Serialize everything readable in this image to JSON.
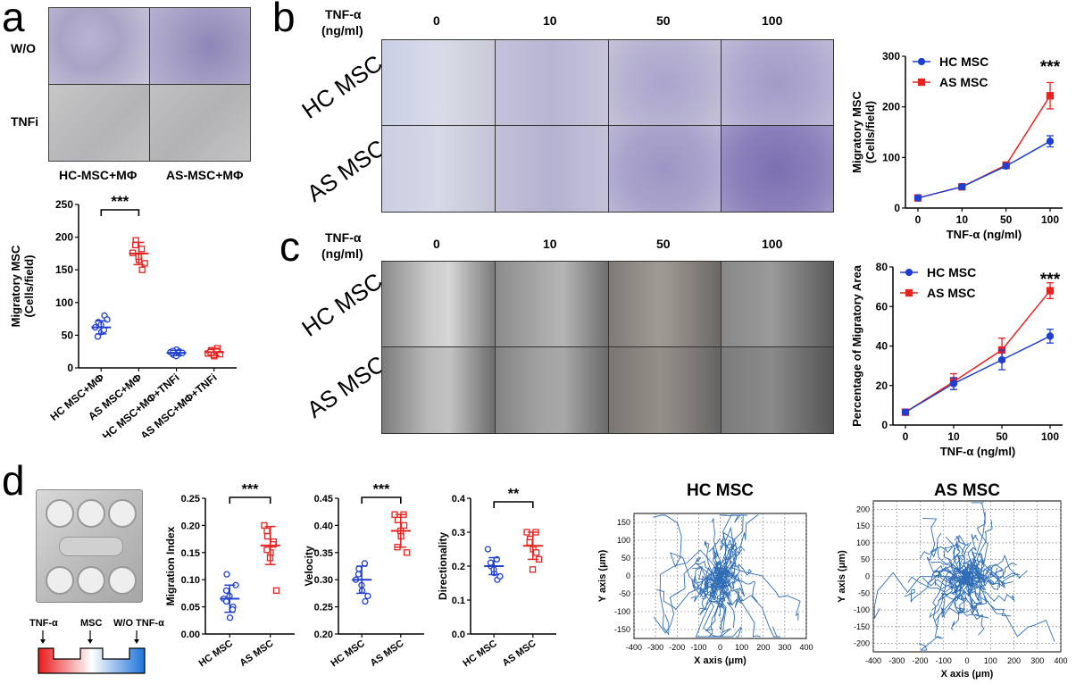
{
  "panels": {
    "a": {
      "label": "a",
      "rows": [
        "W/O",
        "TNFi"
      ],
      "cols": [
        "HC-MSC+MΦ",
        "AS-MSC+MΦ"
      ]
    },
    "b": {
      "label": "b",
      "tnf_label": "TNF-α",
      "tnf_unit": "(ng/ml)",
      "doses": [
        "0",
        "10",
        "50",
        "100"
      ],
      "rows": [
        "HC MSC",
        "AS MSC"
      ]
    },
    "c": {
      "label": "c",
      "tnf_label": "TNF-α",
      "tnf_unit": "(ng/ml)",
      "doses": [
        "0",
        "10",
        "50",
        "100"
      ],
      "rows": [
        "HC MSC",
        "AS MSC"
      ]
    },
    "d": {
      "label": "d",
      "schematic": {
        "left": "TNF-α",
        "mid": "MSC",
        "right": "W/O TNF-α"
      },
      "track_titles": [
        "HC MSC",
        "AS MSC"
      ]
    }
  },
  "chart_data": [
    {
      "id": "a-scatter",
      "type": "scatter",
      "categories": [
        "HC MSC+MΦ",
        "AS MSC+MΦ",
        "HC MSC+MΦ+TNFi",
        "AS MSC+MΦ+TNFi"
      ],
      "ylabel": "Migratory MSC\n(Cells/field)",
      "ylim": [
        0,
        250
      ],
      "yticks": [
        "0",
        "50",
        "100",
        "150",
        "200",
        "250"
      ],
      "significance": "***",
      "series": [
        {
          "points": [
            62,
            70,
            55,
            80,
            48,
            66,
            58,
            74
          ],
          "mean": 62,
          "sd": 10,
          "color": "#1f3fd1",
          "marker": "circle"
        },
        {
          "points": [
            176,
            195,
            165,
            150,
            188,
            170,
            182,
            160
          ],
          "mean": 175,
          "sd": 17,
          "color": "#e8221e",
          "marker": "square"
        },
        {
          "points": [
            24,
            20,
            28,
            22,
            26,
            18,
            25,
            23
          ],
          "mean": 23,
          "sd": 4,
          "color": "#1f3fd1",
          "marker": "circle"
        },
        {
          "points": [
            22,
            27,
            18,
            30,
            24,
            20,
            26,
            21
          ],
          "mean": 24,
          "sd": 5,
          "color": "#e8221e",
          "marker": "square"
        }
      ]
    },
    {
      "id": "b-line",
      "type": "line",
      "x": [
        "0",
        "10",
        "50",
        "100"
      ],
      "xlabel": "TNF-α (ng/ml)",
      "ylabel": "Migratory MSC\n(Cells/field)",
      "ylim": [
        0,
        300
      ],
      "yticks": [
        "0",
        "100",
        "200",
        "300"
      ],
      "significance": "***",
      "legend": "top-left",
      "series": [
        {
          "name": "HC MSC",
          "values": [
            20,
            42,
            83,
            132
          ],
          "err": [
            3,
            4,
            5,
            11
          ],
          "color": "#1f3fd1",
          "marker": "circle"
        },
        {
          "name": "AS MSC",
          "values": [
            20,
            42,
            85,
            222
          ],
          "err": [
            3,
            4,
            5,
            26
          ],
          "color": "#e8221e",
          "marker": "square"
        }
      ]
    },
    {
      "id": "c-line",
      "type": "line",
      "x": [
        "0",
        "10",
        "50",
        "100"
      ],
      "xlabel": "TNF-α (ng/ml)",
      "ylabel": "Percentage of Migratory Area",
      "ylim": [
        0,
        80
      ],
      "yticks": [
        "0",
        "20",
        "40",
        "60",
        "80"
      ],
      "significance": "***",
      "legend": "top-left",
      "series": [
        {
          "name": "HC MSC",
          "values": [
            6.5,
            21,
            33,
            45
          ],
          "err": [
            1,
            3,
            5,
            3.5
          ],
          "color": "#1f3fd1",
          "marker": "circle"
        },
        {
          "name": "AS MSC",
          "values": [
            6.5,
            22,
            38,
            68
          ],
          "err": [
            1,
            4,
            6,
            4
          ],
          "color": "#e8221e",
          "marker": "square"
        }
      ]
    },
    {
      "id": "d-migration-index",
      "type": "scatter",
      "categories": [
        "HC MSC",
        "AS MSC"
      ],
      "ylabel": "Migration Index",
      "ylim": [
        0,
        0.25
      ],
      "yticks": [
        "0.00",
        "0.05",
        "0.10",
        "0.15",
        "0.20",
        "0.25"
      ],
      "significance": "***",
      "series": [
        {
          "points": [
            0.065,
            0.11,
            0.03,
            0.05,
            0.08,
            0.07,
            0.045,
            0.09,
            0.06
          ],
          "mean": 0.065,
          "sd": 0.025,
          "color": "#1f3fd1",
          "marker": "circle"
        },
        {
          "points": [
            0.2,
            0.18,
            0.15,
            0.17,
            0.19,
            0.14,
            0.165,
            0.08,
            0.155
          ],
          "mean": 0.163,
          "sd": 0.035,
          "color": "#e8221e",
          "marker": "square"
        }
      ]
    },
    {
      "id": "d-velocity",
      "type": "scatter",
      "categories": [
        "HC MSC",
        "AS MSC"
      ],
      "ylabel": "Velocity",
      "ylim": [
        0.2,
        0.45
      ],
      "yticks": [
        "0.20",
        "0.25",
        "0.30",
        "0.35",
        "0.40",
        "0.45"
      ],
      "significance": "***",
      "series": [
        {
          "points": [
            0.3,
            0.32,
            0.28,
            0.26,
            0.31,
            0.29,
            0.33,
            0.27
          ],
          "mean": 0.3,
          "sd": 0.025,
          "color": "#1f3fd1",
          "marker": "circle"
        },
        {
          "points": [
            0.42,
            0.41,
            0.38,
            0.4,
            0.36,
            0.39,
            0.42,
            0.35
          ],
          "mean": 0.39,
          "sd": 0.03,
          "color": "#e8221e",
          "marker": "square"
        }
      ]
    },
    {
      "id": "d-directionality",
      "type": "scatter",
      "categories": [
        "HC MSC",
        "AS MSC"
      ],
      "ylabel": "Directionality",
      "ylim": [
        0,
        0.4
      ],
      "yticks": [
        "0.0",
        "0.1",
        "0.2",
        "0.3",
        "0.4"
      ],
      "significance": "**",
      "series": [
        {
          "points": [
            0.25,
            0.2,
            0.18,
            0.16,
            0.21,
            0.19,
            0.22,
            0.17
          ],
          "mean": 0.2,
          "sd": 0.025,
          "color": "#1f3fd1",
          "marker": "circle"
        },
        {
          "points": [
            0.3,
            0.28,
            0.25,
            0.24,
            0.27,
            0.19,
            0.3,
            0.22
          ],
          "mean": 0.26,
          "sd": 0.04,
          "color": "#e8221e",
          "marker": "square"
        }
      ]
    },
    {
      "id": "d-track-hc",
      "type": "scatter",
      "title": "HC MSC",
      "xlabel": "X axis (μm)",
      "ylabel": "Y axis (μm)",
      "xlim": [
        -400,
        400
      ],
      "ylim": [
        -175,
        175
      ],
      "xticks": [
        "-400",
        "-300",
        "-200",
        "-100",
        "0",
        "100",
        "200",
        "300",
        "400"
      ],
      "yticks": [
        "-150",
        "-100",
        "-50",
        "0",
        "50",
        "100",
        "150"
      ],
      "grid": true,
      "color": "#2f6db5",
      "tracks": 60
    },
    {
      "id": "d-track-as",
      "type": "scatter",
      "title": "AS MSC",
      "xlabel": "X axis (μm)",
      "ylabel": "Y axis (μm)",
      "xlim": [
        -400,
        400
      ],
      "ylim": [
        -225,
        225
      ],
      "xticks": [
        "-400",
        "-300",
        "-200",
        "-100",
        "0",
        "100",
        "200",
        "300",
        "400"
      ],
      "yticks": [
        "-200",
        "-150",
        "-100",
        "-50",
        "0",
        "50",
        "100",
        "150",
        "200"
      ],
      "grid": true,
      "color": "#2f6db5",
      "tracks": 60
    }
  ]
}
